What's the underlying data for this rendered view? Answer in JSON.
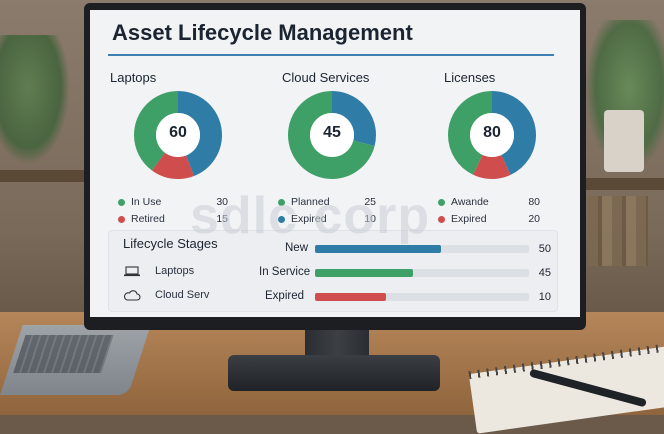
{
  "title": "Asset Lifecycle Management",
  "watermark": "sdlc corp",
  "colors": {
    "green": "#3fa067",
    "blue": "#2f7ca7",
    "red": "#cf4d4d",
    "accent": "#3f7fb4"
  },
  "cards": [
    {
      "title": "Laptops",
      "value": "60",
      "segments": [
        {
          "color": "#2f7ca7",
          "fraction": 0.44
        },
        {
          "color": "#cf4d4d",
          "fraction": 0.16
        },
        {
          "color": "#3fa067",
          "fraction": 0.4
        }
      ],
      "legend": [
        {
          "label": "In Use",
          "value": "30",
          "color": "#3fa067"
        },
        {
          "label": "Retired",
          "value": "15",
          "color": "#cf4d4d"
        }
      ]
    },
    {
      "title": "Cloud Services",
      "value": "45",
      "segments": [
        {
          "color": "#2f7ca7",
          "fraction": 0.29
        },
        {
          "color": "#3fa067",
          "fraction": 0.71
        }
      ],
      "legend": [
        {
          "label": "Planned",
          "value": "25",
          "color": "#3fa067"
        },
        {
          "label": "Expired",
          "value": "10",
          "color": "#2f7ca7"
        }
      ]
    },
    {
      "title": "Licenses",
      "value": "80",
      "segments": [
        {
          "color": "#2f7ca7",
          "fraction": 0.43
        },
        {
          "color": "#cf4d4d",
          "fraction": 0.14
        },
        {
          "color": "#3fa067",
          "fraction": 0.43
        }
      ],
      "legend": [
        {
          "label": "Awande",
          "value": "80",
          "color": "#3fa067"
        },
        {
          "label": "Expired",
          "value": "20",
          "color": "#cf4d4d"
        }
      ]
    }
  ],
  "stages": {
    "title": "Lifecycle Stages",
    "items": [
      {
        "label": "Laptops",
        "icon": "laptop-icon"
      },
      {
        "label": "Cloud Serv",
        "icon": "cloud-icon"
      }
    ],
    "bars": [
      {
        "label": "New",
        "value": "50",
        "fraction": 0.59,
        "color": "#2f7ca7"
      },
      {
        "label": "In Service",
        "value": "45",
        "fraction": 0.46,
        "color": "#3fa067"
      },
      {
        "label": "Expired",
        "value": "10",
        "fraction": 0.33,
        "color": "#cf4d4d"
      }
    ]
  }
}
